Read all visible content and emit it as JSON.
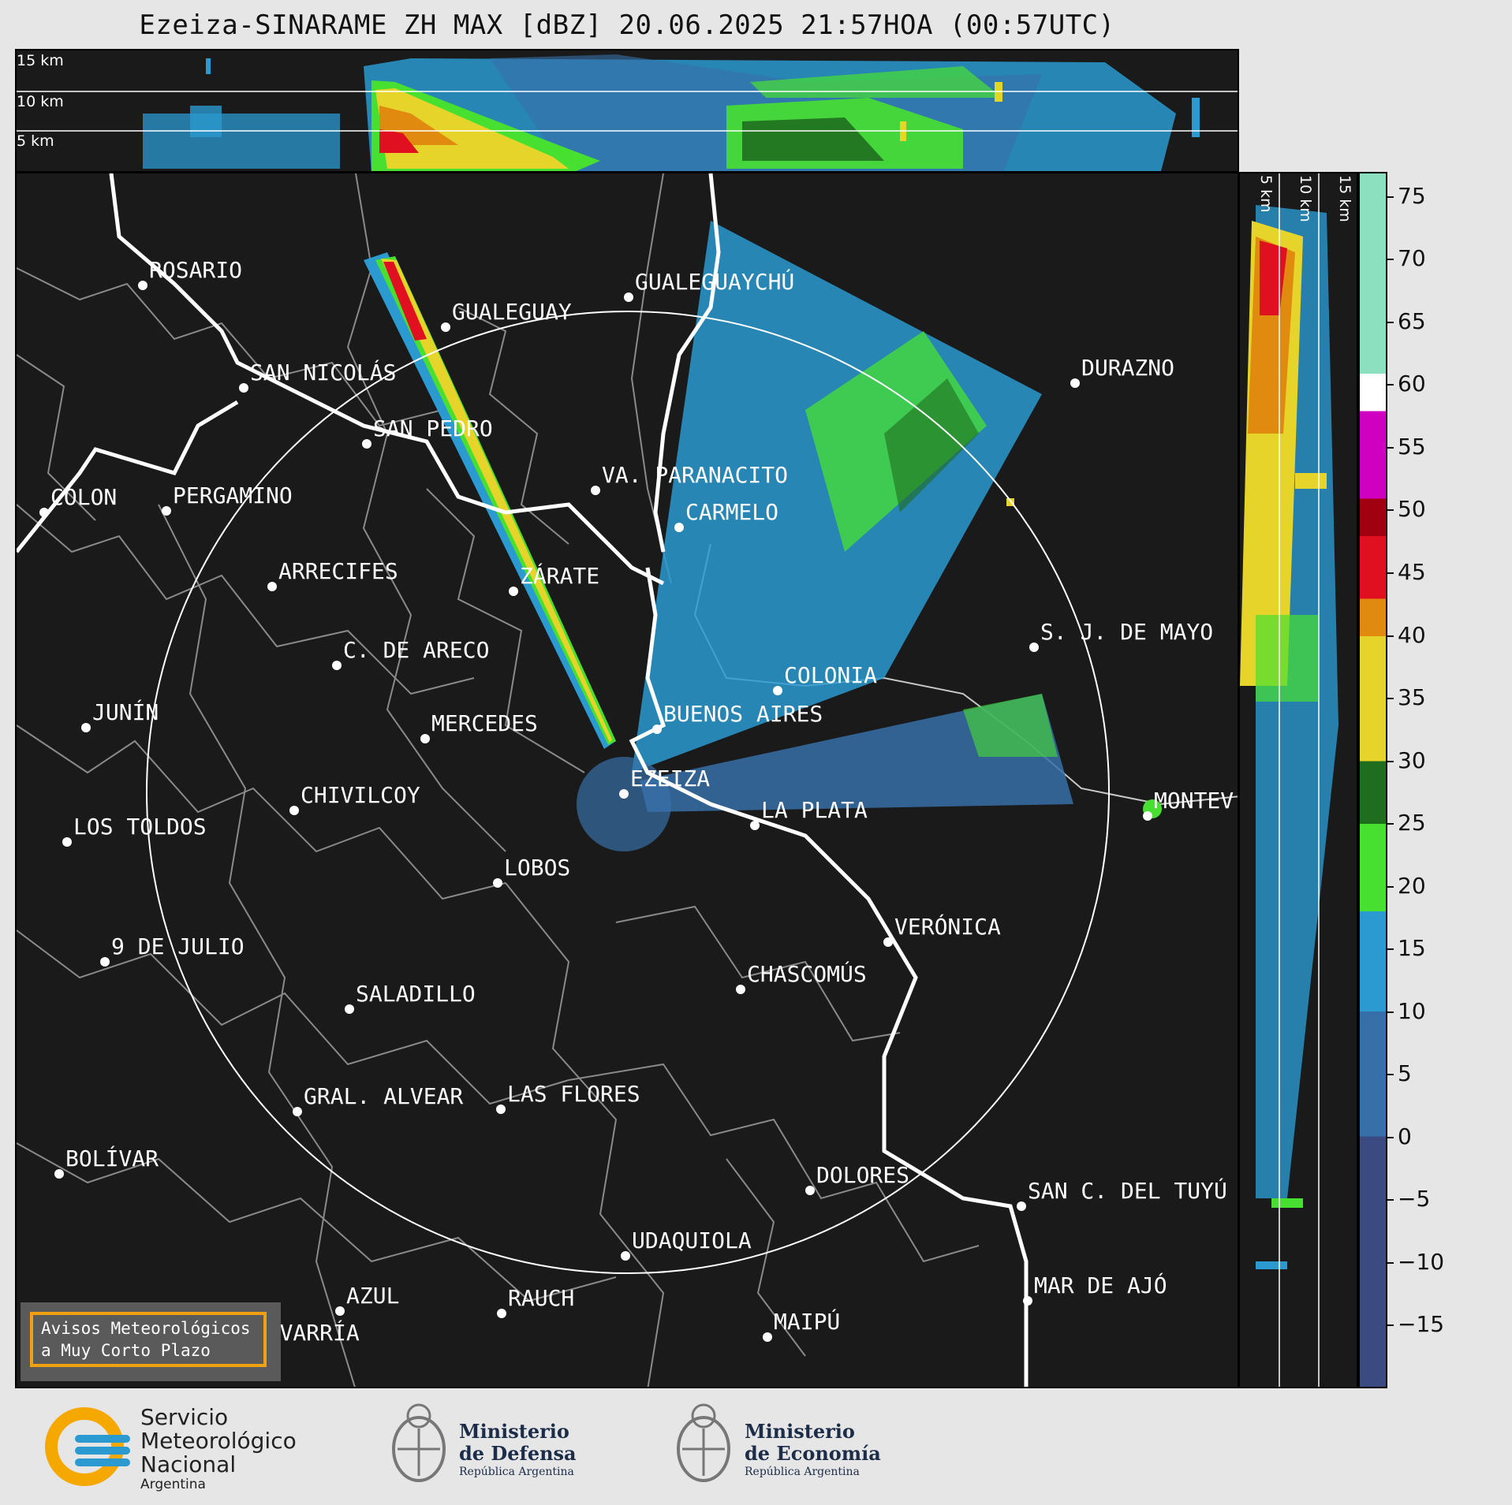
{
  "title": "Ezeiza-SINARAME ZH MAX [dBZ] 20.06.2025 21:57HOA (00:57UTC)",
  "top_levels": [
    "15 km",
    "10 km",
    "5 km"
  ],
  "right_levels": [
    "5 km",
    "10 km",
    "15 km"
  ],
  "cities": [
    {
      "name": "ROSARIO"
    },
    {
      "name": "GUALEGUAYCHÚ"
    },
    {
      "name": "GUALEGUAY"
    },
    {
      "name": "SAN NICOLÁS"
    },
    {
      "name": "DURAZNO"
    },
    {
      "name": "SAN PEDRO"
    },
    {
      "name": "VA. PARANACITO"
    },
    {
      "name": "COLON"
    },
    {
      "name": "PERGAMINO"
    },
    {
      "name": "CARMELO"
    },
    {
      "name": "ARRECIFES"
    },
    {
      "name": "ZÁRATE"
    },
    {
      "name": "S. J. DE MAYO"
    },
    {
      "name": "C. DE ARECO"
    },
    {
      "name": "COLONIA"
    },
    {
      "name": "JUNÍN"
    },
    {
      "name": "BUENOS AIRES"
    },
    {
      "name": "MERCEDES"
    },
    {
      "name": "EZEIZA"
    },
    {
      "name": "MONTEV"
    },
    {
      "name": "CHIVILCOY"
    },
    {
      "name": "LA PLATA"
    },
    {
      "name": "LOS TOLDOS"
    },
    {
      "name": "LOBOS"
    },
    {
      "name": "VERÓNICA"
    },
    {
      "name": "9 DE JULIO"
    },
    {
      "name": "CHASCOMÚS"
    },
    {
      "name": "SALADILLO"
    },
    {
      "name": "GRAL. ALVEAR"
    },
    {
      "name": "LAS FLORES"
    },
    {
      "name": "BOLÍVAR"
    },
    {
      "name": "DOLORES"
    },
    {
      "name": "SAN C. DEL TUYÚ"
    },
    {
      "name": "UDAQUIOLA"
    },
    {
      "name": "AZUL"
    },
    {
      "name": "RAUCH"
    },
    {
      "name": "MAR DE AJÓ"
    },
    {
      "name": "OLAVARRÍA"
    },
    {
      "name": "MAIPÚ"
    }
  ],
  "colorbar": {
    "label_unit": "dBZ",
    "range": [
      -20,
      77
    ],
    "ticks": [
      "75",
      "70",
      "65",
      "60",
      "55",
      "50",
      "45",
      "40",
      "35",
      "30",
      "25",
      "20",
      "15",
      "10",
      "5",
      "0",
      "−5",
      "−10",
      "−15"
    ],
    "tick_values": [
      75,
      70,
      65,
      60,
      55,
      50,
      45,
      40,
      35,
      30,
      25,
      20,
      15,
      10,
      5,
      0,
      -5,
      -10,
      -15
    ],
    "stops": [
      {
        "from": -20,
        "to": 0,
        "color": "#3b4a80"
      },
      {
        "from": 0,
        "to": 10,
        "color": "#3770a8"
      },
      {
        "from": 10,
        "to": 18,
        "color": "#2a9ad0"
      },
      {
        "from": 18,
        "to": 25,
        "color": "#48e030"
      },
      {
        "from": 25,
        "to": 30,
        "color": "#1f6e1f"
      },
      {
        "from": 30,
        "to": 40,
        "color": "#e6d42a"
      },
      {
        "from": 40,
        "to": 43,
        "color": "#e08a10"
      },
      {
        "from": 43,
        "to": 48,
        "color": "#e01020"
      },
      {
        "from": 48,
        "to": 51,
        "color": "#a00010"
      },
      {
        "from": 51,
        "to": 58,
        "color": "#d000c0"
      },
      {
        "from": 58,
        "to": 61,
        "color": "#ffffff"
      },
      {
        "from": 61,
        "to": 77,
        "color": "#8ce0c0"
      }
    ]
  },
  "aviso": {
    "line1": "Avisos Meteorológicos",
    "line2": "a Muy Corto Plazo"
  },
  "logos": {
    "smn": {
      "line1": "Servicio",
      "line2": "Meteorológico",
      "line3": "Nacional",
      "line4": "Argentina"
    },
    "defensa": {
      "line1": "Ministerio",
      "line2": "de Defensa",
      "line3": "República Argentina"
    },
    "economia": {
      "line1": "Ministerio",
      "line2": "de Economía",
      "line3": "República Argentina"
    }
  },
  "colors": {
    "background": "#1a1a1a",
    "river": "#ffffff",
    "borders": "#8a8a8a"
  }
}
